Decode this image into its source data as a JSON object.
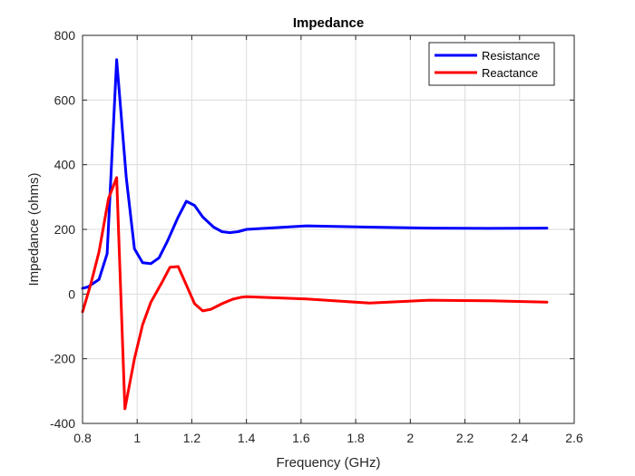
{
  "chart_data": {
    "type": "line",
    "title": "Impedance",
    "xlabel": "Frequency (GHz)",
    "ylabel": "Impedance (ohms)",
    "xlim": [
      0.8,
      2.6
    ],
    "ylim": [
      -400,
      800
    ],
    "xticks": [
      0.8,
      1,
      1.2,
      1.4,
      1.6,
      1.8,
      2,
      2.2,
      2.4,
      2.6
    ],
    "xtick_labels": [
      "0.8",
      "1",
      "1.2",
      "1.4",
      "1.6",
      "1.8",
      "2",
      "2.2",
      "2.4",
      "2.6"
    ],
    "yticks": [
      -400,
      -200,
      0,
      200,
      400,
      600,
      800
    ],
    "ytick_labels": [
      "-400",
      "-200",
      "0",
      "200",
      "400",
      "600",
      "800"
    ],
    "grid": true,
    "legend_position": "top-right",
    "series": [
      {
        "name": "Resistance",
        "color": "#0000ff",
        "x": [
          0.8,
          0.82,
          0.86,
          0.89,
          0.925,
          0.96,
          0.99,
          1.02,
          1.05,
          1.08,
          1.11,
          1.15,
          1.18,
          1.21,
          1.24,
          1.28,
          1.31,
          1.34,
          1.37,
          1.4,
          1.62,
          1.85,
          2.07,
          2.29,
          2.5
        ],
        "y": [
          18,
          22,
          45,
          125,
          725,
          360,
          140,
          97,
          94,
          112,
          162,
          238,
          287,
          274,
          238,
          207,
          193,
          190,
          193,
          200,
          211,
          207,
          204,
          203,
          204
        ]
      },
      {
        "name": "Reactance",
        "color": "#ff0000",
        "x": [
          0.8,
          0.83,
          0.86,
          0.895,
          0.925,
          0.955,
          0.99,
          1.02,
          1.05,
          1.09,
          1.12,
          1.15,
          1.18,
          1.21,
          1.24,
          1.27,
          1.31,
          1.35,
          1.38,
          1.4,
          1.62,
          1.85,
          2.07,
          2.29,
          2.5
        ],
        "y": [
          -55,
          30,
          130,
          295,
          360,
          -355,
          -200,
          -95,
          -25,
          35,
          83,
          85,
          28,
          -30,
          -52,
          -47,
          -30,
          -16,
          -10,
          -8,
          -15,
          -28,
          -19,
          -21,
          -25
        ]
      }
    ]
  }
}
